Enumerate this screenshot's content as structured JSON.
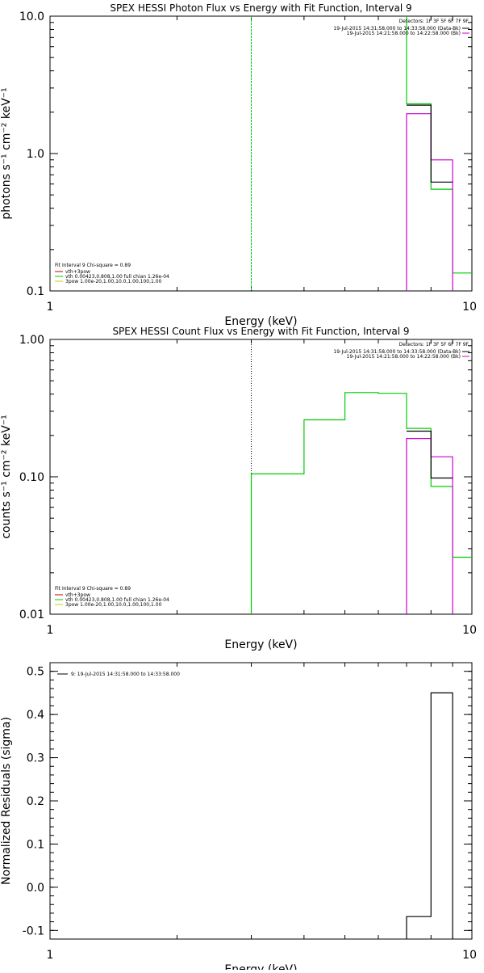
{
  "chart_data": [
    {
      "type": "line",
      "title": "SPEX HESSI Photon Flux vs Energy with Fit Function, Interval 9",
      "xlabel": "Energy (keV)",
      "ylabel": "photons s⁻¹ cm⁻² keV⁻¹",
      "xscale": "log",
      "yscale": "log",
      "xlim": [
        1,
        10
      ],
      "ylim": [
        0.1,
        10
      ],
      "xticks": [
        {
          "v": 1,
          "label": "1"
        },
        {
          "v": 10,
          "label": "10"
        }
      ],
      "yticks": [
        {
          "v": 0.1,
          "label": "0.1"
        },
        {
          "v": 1,
          "label": "1.0"
        },
        {
          "v": 10,
          "label": "10.0"
        }
      ],
      "grid": false,
      "fit_start": {
        "x": 3,
        "color": "#00cc00",
        "style": "dashed"
      },
      "legend_top": {
        "position": "top-right",
        "header": "Detectors: 1F 3F 5F 6F 7F 9F",
        "entries": [
          {
            "text": "19-Jul-2015 14:31:58.000 to 14:33:58.000 (Data-Bk)",
            "color": "#000000"
          },
          {
            "text": "19-Jul-2015 14:21:58.000 to 14:22:58.000 (Bk)",
            "color": "#cc00cc"
          }
        ]
      },
      "legend_bottom": {
        "position": "bottom-left",
        "header": "Fit Interval 9   Chi-square = 0.89",
        "entries": [
          {
            "text": "vth+3pow",
            "color": "#cc0000"
          },
          {
            "text": "vth 0.00423,0.808,1.00   full chian 1.26e-04",
            "color": "#00cc00"
          },
          {
            "text": "3pow 1.00e-20,1.00,10.0,1.00,100,1.00",
            "color": "#cccc00"
          }
        ]
      },
      "series": [
        {
          "color": "#00cc00",
          "points": [
            [
              7,
              10
            ],
            [
              7,
              2.3
            ],
            [
              8,
              2.3
            ],
            [
              8,
              0.55
            ],
            [
              9,
              0.55
            ],
            [
              9,
              0.135
            ],
            [
              10,
              0.135
            ]
          ]
        },
        {
          "color": "#cc00cc",
          "points": [
            [
              7,
              0.1
            ],
            [
              7,
              1.95
            ],
            [
              8,
              1.95
            ],
            [
              8,
              0.9
            ],
            [
              9,
              0.9
            ],
            [
              9,
              0.1
            ]
          ]
        },
        {
          "color": "#000000",
          "points": [
            [
              7,
              2.25
            ],
            [
              8,
              2.25
            ],
            [
              8,
              0.62
            ],
            [
              9,
              0.62
            ]
          ]
        }
      ]
    },
    {
      "type": "line",
      "title": "SPEX HESSI Count Flux vs Energy with Fit Function, Interval 9",
      "xlabel": "Energy (keV)",
      "ylabel": "counts s⁻¹ cm⁻² keV⁻¹",
      "xscale": "log",
      "yscale": "log",
      "xlim": [
        1,
        10
      ],
      "ylim": [
        0.01,
        1
      ],
      "xticks": [
        {
          "v": 1,
          "label": "1"
        },
        {
          "v": 10,
          "label": "10"
        }
      ],
      "yticks": [
        {
          "v": 0.01,
          "label": "0.01"
        },
        {
          "v": 0.1,
          "label": "0.10"
        },
        {
          "v": 1,
          "label": "1.00"
        }
      ],
      "grid": false,
      "fit_start": {
        "x": 3,
        "color": "#000000",
        "style": "dotted"
      },
      "legend_top": {
        "position": "top-right",
        "header": "Detectors: 1F 3F 5F 6F 7F 9F",
        "entries": [
          {
            "text": "19-Jul-2015 14:31:58.000 to 14:33:58.000 (Data-Bk)",
            "color": "#000000"
          },
          {
            "text": "19-Jul-2015 14:21:58.000 to 14:22:58.000 (Bk)",
            "color": "#cc00cc"
          }
        ]
      },
      "legend_bottom": {
        "position": "bottom-left",
        "header": "Fit Interval 9   Chi-square = 0.89",
        "entries": [
          {
            "text": "vth+3pow",
            "color": "#cc0000"
          },
          {
            "text": "vth 0.00423,0.808,1.00   full chian 1.26e-04",
            "color": "#00cc00"
          },
          {
            "text": "3pow 1.00e-20,1.00,10.0,1.00,100,1.00",
            "color": "#cccc00"
          }
        ]
      },
      "series": [
        {
          "color": "#00cc00",
          "points": [
            [
              3,
              0.01
            ],
            [
              3,
              0.105
            ],
            [
              4,
              0.105
            ],
            [
              4,
              0.26
            ],
            [
              5,
              0.26
            ],
            [
              5,
              0.41
            ],
            [
              6,
              0.41
            ],
            [
              6,
              0.405
            ],
            [
              7,
              0.405
            ],
            [
              7,
              0.225
            ],
            [
              8,
              0.225
            ],
            [
              8,
              0.085
            ],
            [
              9,
              0.085
            ],
            [
              9,
              0.026
            ],
            [
              10,
              0.026
            ]
          ]
        },
        {
          "color": "#cc00cc",
          "points": [
            [
              7,
              0.01
            ],
            [
              7,
              0.19
            ],
            [
              8,
              0.19
            ],
            [
              8,
              0.14
            ],
            [
              9,
              0.14
            ],
            [
              9,
              0.01
            ]
          ]
        },
        {
          "color": "#000000",
          "points": [
            [
              7,
              0.215
            ],
            [
              8,
              0.215
            ],
            [
              8,
              0.098
            ],
            [
              9,
              0.098
            ]
          ]
        }
      ]
    },
    {
      "type": "line",
      "title": "",
      "xlabel": "Energy (keV)",
      "ylabel": "Normalized Residuals (sigma)",
      "xscale": "log",
      "yscale": "linear",
      "xlim": [
        1,
        10
      ],
      "ylim": [
        -0.12,
        0.52
      ],
      "xticks": [
        {
          "v": 1,
          "label": "1"
        },
        {
          "v": 10,
          "label": "10"
        }
      ],
      "yticks": [
        {
          "v": -0.1,
          "label": "-0.1"
        },
        {
          "v": 0,
          "label": "0.0"
        },
        {
          "v": 0.1,
          "label": "0.1"
        },
        {
          "v": 0.2,
          "label": "0.2"
        },
        {
          "v": 0.3,
          "label": "0.3"
        },
        {
          "v": 0.4,
          "label": "0.4"
        },
        {
          "v": 0.5,
          "label": "0.5"
        }
      ],
      "grid": false,
      "legend_top": {
        "position": "top-left",
        "header": "",
        "entries": [
          {
            "text": "9: 19-Jul-2015 14:31:58.000 to 14:33:58.000",
            "color": "#000000"
          }
        ]
      },
      "series": [
        {
          "color": "#000000",
          "points": [
            [
              7,
              -0.12
            ],
            [
              7,
              -0.068
            ],
            [
              8,
              -0.068
            ],
            [
              8,
              0.45
            ],
            [
              9,
              0.45
            ],
            [
              9,
              -0.12
            ]
          ]
        }
      ]
    }
  ]
}
